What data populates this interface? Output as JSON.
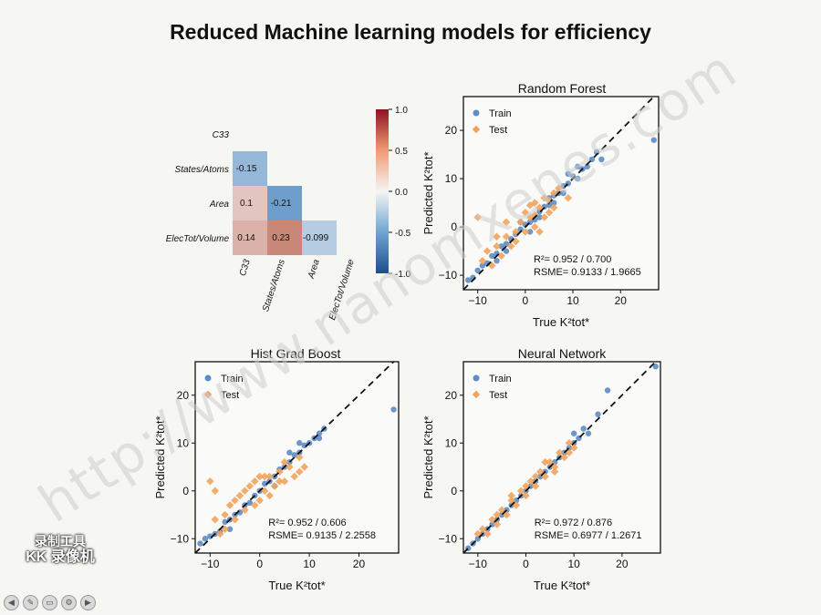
{
  "slide": {
    "title": "Reduced Machine learning models for efficiency",
    "watermark": "http://www.nanomxenes.com",
    "recorder_badge": [
      "录制工具",
      "KK 录像机"
    ]
  },
  "icons": [
    "arrow-left-icon",
    "pen-icon",
    "page-icon",
    "settings-icon",
    "arrow-right-icon"
  ],
  "colors": {
    "train": "#5b8cc4",
    "test": "#f0a35e",
    "diag": "#111111",
    "neg": "#2d5fa0",
    "pos": "#b3232a"
  },
  "chart_data": [
    {
      "type": "heatmap",
      "title": "",
      "row_labels": [
        "C33",
        "States/Atoms",
        "Area",
        "ElecTot/Volume"
      ],
      "col_labels": [
        "C33",
        "States/Atoms",
        "Area",
        "ElecTot/Volume"
      ],
      "cells": [
        {
          "row": 1,
          "col": 0,
          "value": -0.15
        },
        {
          "row": 2,
          "col": 0,
          "value": 0.1
        },
        {
          "row": 2,
          "col": 1,
          "value": -0.21
        },
        {
          "row": 3,
          "col": 0,
          "value": 0.14
        },
        {
          "row": 3,
          "col": 1,
          "value": 0.23
        },
        {
          "row": 3,
          "col": 2,
          "value": -0.099
        }
      ],
      "cell_labels": [
        "-0.15",
        "0.1",
        "-0.21",
        "0.14",
        "0.23",
        "-0.099"
      ],
      "colorbar": {
        "min": -1.0,
        "max": 1.0,
        "ticks": [
          "1.0",
          "0.5",
          "0.0",
          "-0.5",
          "-1.0"
        ]
      }
    },
    {
      "type": "scatter",
      "title": "Random Forest",
      "xlabel": "True K²tot*",
      "ylabel": "Predicted K²tot*",
      "xlim": [
        -13,
        28
      ],
      "ylim": [
        -13,
        27
      ],
      "xticks": [
        -10,
        0,
        10,
        20
      ],
      "yticks": [
        -10,
        0,
        10,
        20
      ],
      "legend": {
        "position": "top-left",
        "entries": [
          "Train",
          "Test"
        ]
      },
      "annotation": [
        "R²= 0.952 / 0.700",
        "RSME= 0.9133 / 1.9665"
      ],
      "series": [
        {
          "name": "Train",
          "points": [
            [
              -9,
              -8
            ],
            [
              -8,
              -7.5
            ],
            [
              -7,
              -6
            ],
            [
              -6,
              -5.5
            ],
            [
              -5,
              -4
            ],
            [
              -4,
              -3.5
            ],
            [
              -3,
              -2.5
            ],
            [
              -2,
              -1.5
            ],
            [
              -1,
              -0.5
            ],
            [
              0,
              0.5
            ],
            [
              1,
              1
            ],
            [
              2,
              1.5
            ],
            [
              3,
              3.2
            ],
            [
              4,
              4.2
            ],
            [
              5,
              4.5
            ],
            [
              6,
              6.5
            ],
            [
              7,
              7
            ],
            [
              8,
              8.5
            ],
            [
              9,
              9
            ],
            [
              10,
              10.5
            ],
            [
              11,
              10
            ],
            [
              12,
              12
            ],
            [
              13,
              12.5
            ],
            [
              14,
              14
            ],
            [
              15,
              15.5
            ],
            [
              -10,
              -9
            ],
            [
              -11,
              -10.5
            ],
            [
              -12,
              -11
            ],
            [
              -6,
              -7
            ],
            [
              -4,
              -5
            ],
            [
              3,
              2
            ],
            [
              6,
              5
            ],
            [
              9,
              11
            ],
            [
              16,
              14
            ],
            [
              27,
              18
            ],
            [
              -1,
              1
            ],
            [
              1,
              -1
            ],
            [
              5,
              6
            ],
            [
              8,
              7
            ],
            [
              11,
              12.5
            ]
          ]
        },
        {
          "name": "Test",
          "points": [
            [
              -9,
              -7
            ],
            [
              -7,
              -8
            ],
            [
              -6,
              -4
            ],
            [
              -5,
              -6
            ],
            [
              -4,
              -2
            ],
            [
              -3,
              -4
            ],
            [
              -2,
              -1
            ],
            [
              -1,
              1
            ],
            [
              0,
              -1
            ],
            [
              1,
              2
            ],
            [
              2,
              0
            ],
            [
              3,
              4
            ],
            [
              4,
              2
            ],
            [
              5,
              5.5
            ],
            [
              6,
              4
            ],
            [
              7,
              8
            ],
            [
              -10,
              2
            ],
            [
              -4,
              1
            ],
            [
              0,
              3
            ],
            [
              2,
              5
            ],
            [
              5,
              3
            ],
            [
              9,
              6
            ],
            [
              3,
              -1
            ],
            [
              -2,
              -3
            ],
            [
              1,
              4.5
            ],
            [
              -6,
              -2
            ],
            [
              4,
              6
            ],
            [
              6,
              7
            ],
            [
              -8,
              -5
            ],
            [
              2,
              2.5
            ]
          ]
        }
      ]
    },
    {
      "type": "scatter",
      "title": "Hist Grad Boost",
      "xlabel": "True K²tot*",
      "ylabel": "Predicted K²tot*",
      "xlim": [
        -13,
        28
      ],
      "ylim": [
        -13,
        27
      ],
      "xticks": [
        -10,
        0,
        10,
        20
      ],
      "yticks": [
        -10,
        0,
        10,
        20
      ],
      "legend": {
        "position": "top-left",
        "entries": [
          "Train",
          "Test"
        ]
      },
      "annotation": [
        "R²= 0.952 / 0.606",
        "RSME= 0.9135 / 2.2558"
      ],
      "series": [
        {
          "name": "Train",
          "points": [
            [
              -10,
              -9.5
            ],
            [
              -9,
              -9
            ],
            [
              -8,
              -8.5
            ],
            [
              -7,
              -6.5
            ],
            [
              -6,
              -6
            ],
            [
              -5,
              -5
            ],
            [
              -4,
              -4.5
            ],
            [
              -3,
              -3
            ],
            [
              -2,
              -2.5
            ],
            [
              -1,
              -1
            ],
            [
              0,
              0
            ],
            [
              1,
              1.5
            ],
            [
              2,
              2
            ],
            [
              3,
              3
            ],
            [
              4,
              4.5
            ],
            [
              5,
              5
            ],
            [
              6,
              6
            ],
            [
              7,
              7.5
            ],
            [
              8,
              8
            ],
            [
              9,
              9.5
            ],
            [
              10,
              10
            ],
            [
              11,
              11
            ],
            [
              12,
              12
            ],
            [
              13,
              13
            ],
            [
              -11,
              -10
            ],
            [
              -12,
              -11
            ],
            [
              -6,
              -8
            ],
            [
              3,
              1
            ],
            [
              6,
              8
            ],
            [
              27,
              17
            ],
            [
              12,
              11
            ],
            [
              8,
              10
            ]
          ]
        },
        {
          "name": "Test",
          "points": [
            [
              -9,
              -6
            ],
            [
              -8,
              -9
            ],
            [
              -7,
              -5
            ],
            [
              -6,
              -3
            ],
            [
              -5,
              -2
            ],
            [
              -4,
              -1
            ],
            [
              -3,
              0
            ],
            [
              -2,
              1
            ],
            [
              -1,
              2
            ],
            [
              0,
              -2
            ],
            [
              1,
              0
            ],
            [
              2,
              3
            ],
            [
              3,
              1
            ],
            [
              4,
              4
            ],
            [
              5,
              2
            ],
            [
              6,
              5
            ],
            [
              7,
              3
            ],
            [
              8,
              7
            ],
            [
              -10,
              2
            ],
            [
              -9,
              0
            ],
            [
              -3,
              -4
            ],
            [
              -1,
              -3
            ],
            [
              0,
              3
            ],
            [
              2,
              -1
            ],
            [
              5,
              6
            ],
            [
              9,
              5
            ],
            [
              -5,
              -6
            ],
            [
              -7,
              -8
            ],
            [
              4,
              2
            ],
            [
              1,
              3
            ],
            [
              8,
              4
            ]
          ]
        }
      ]
    },
    {
      "type": "scatter",
      "title": "Neural Network",
      "xlabel": "True K²tot*",
      "ylabel": "Predicted K²tot*",
      "xlim": [
        -13,
        28
      ],
      "ylim": [
        -13,
        27
      ],
      "xticks": [
        -10,
        0,
        10,
        20
      ],
      "yticks": [
        -10,
        0,
        10,
        20
      ],
      "legend": {
        "position": "top-left",
        "entries": [
          "Train",
          "Test"
        ]
      },
      "annotation": [
        "R²= 0.972 / 0.876",
        "RSME= 0.6977 / 1.2671"
      ],
      "series": [
        {
          "name": "Train",
          "points": [
            [
              -10,
              -10
            ],
            [
              -9,
              -9
            ],
            [
              -8,
              -8
            ],
            [
              -7,
              -7
            ],
            [
              -6,
              -6
            ],
            [
              -5,
              -5
            ],
            [
              -4,
              -4
            ],
            [
              -3,
              -3
            ],
            [
              -2,
              -2
            ],
            [
              -1,
              -1
            ],
            [
              0,
              0
            ],
            [
              1,
              1
            ],
            [
              2,
              2
            ],
            [
              3,
              3
            ],
            [
              4,
              4
            ],
            [
              5,
              5
            ],
            [
              6,
              6
            ],
            [
              7,
              7
            ],
            [
              8,
              8
            ],
            [
              9,
              9
            ],
            [
              10,
              10
            ],
            [
              11,
              11
            ],
            [
              12,
              13
            ],
            [
              13,
              12
            ],
            [
              15,
              16
            ],
            [
              17,
              21
            ],
            [
              27,
              26
            ],
            [
              -11,
              -11
            ],
            [
              -12,
              -12
            ],
            [
              10,
              12
            ]
          ]
        },
        {
          "name": "Test",
          "points": [
            [
              -9,
              -8
            ],
            [
              -8,
              -9
            ],
            [
              -7,
              -6
            ],
            [
              -6,
              -7
            ],
            [
              -5,
              -4
            ],
            [
              -4,
              -5
            ],
            [
              -3,
              -2
            ],
            [
              -2,
              -3
            ],
            [
              -1,
              0
            ],
            [
              0,
              -1
            ],
            [
              1,
              2
            ],
            [
              2,
              1
            ],
            [
              3,
              4
            ],
            [
              4,
              3
            ],
            [
              5,
              6
            ],
            [
              6,
              5
            ],
            [
              7,
              8
            ],
            [
              8,
              7
            ],
            [
              9,
              10
            ],
            [
              10,
              9
            ],
            [
              -10,
              -9
            ],
            [
              -3,
              -1
            ],
            [
              0,
              1
            ],
            [
              2,
              3
            ],
            [
              4,
              6
            ],
            [
              6,
              4
            ],
            [
              9,
              8
            ],
            [
              -6,
              -5
            ]
          ]
        }
      ]
    }
  ]
}
